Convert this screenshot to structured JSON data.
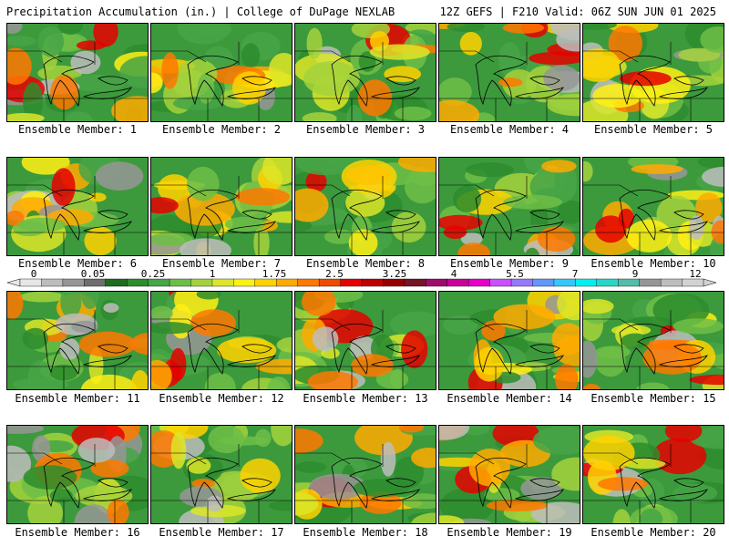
{
  "header": {
    "title_left": "Precipitation Accumulation (in.) | College of DuPage NEXLAB",
    "title_right": "12Z GEFS | F210 Valid: 06Z SUN JUN 01 2025"
  },
  "member_label": "Ensemble Member:",
  "members": [
    1,
    2,
    3,
    4,
    5,
    6,
    7,
    8,
    9,
    10,
    11,
    12,
    13,
    14,
    15,
    16,
    17,
    18,
    19,
    20
  ],
  "colorbar": {
    "tick_labels": [
      "0",
      "0.05",
      "0.25",
      "1",
      "1.75",
      "2.5",
      "3.25",
      "4",
      "5.5",
      "7",
      "9",
      "12"
    ],
    "colors": [
      "#e6e6e6",
      "#bdbdbd",
      "#969696",
      "#6e6e6e",
      "#1e6e1e",
      "#2d8c2d",
      "#46a546",
      "#6ebe46",
      "#a5d23c",
      "#dce628",
      "#fff014",
      "#ffd200",
      "#ffaa00",
      "#ff7800",
      "#f04b00",
      "#e60000",
      "#be0000",
      "#960000",
      "#781428",
      "#a00a6e",
      "#c8009b",
      "#e600c8",
      "#c850ff",
      "#9678ff",
      "#6496ff",
      "#32c8ff",
      "#00f0f0",
      "#28d7c8",
      "#50beaa",
      "#969696",
      "#bebebe",
      "#d2d2d2"
    ]
  }
}
